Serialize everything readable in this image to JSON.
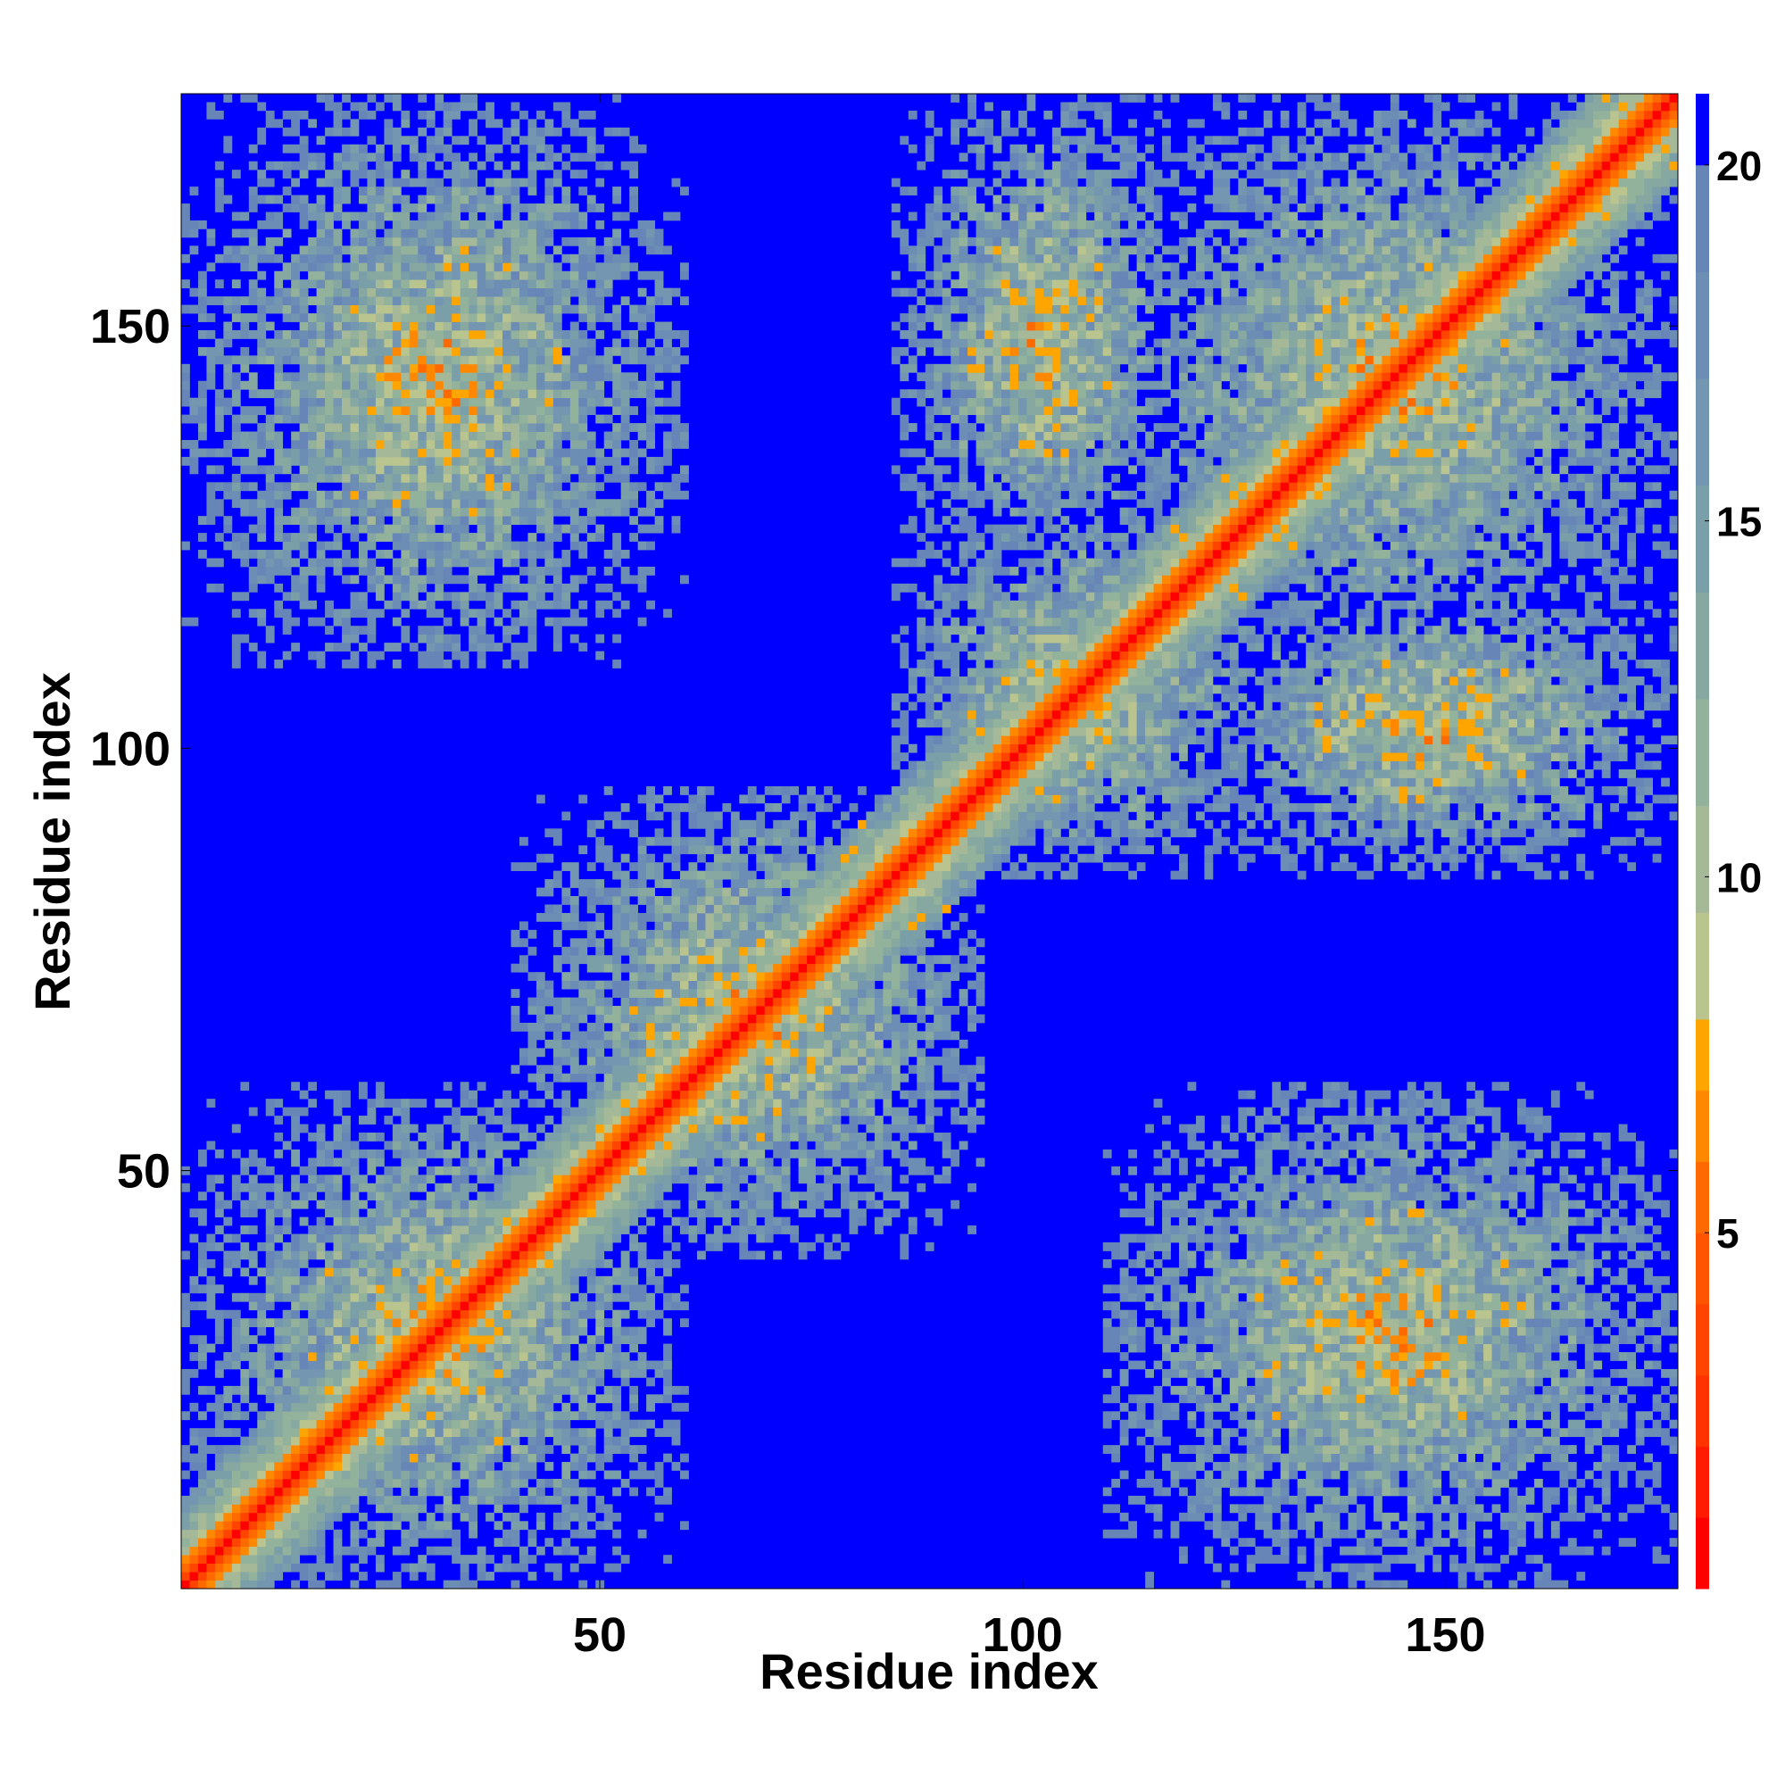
{
  "chart_data": {
    "type": "heatmap",
    "title": "",
    "xlabel": "Residue index",
    "ylabel": "Residue index",
    "x_range": [
      1,
      177
    ],
    "y_range": [
      1,
      177
    ],
    "x_ticks": [
      50,
      100,
      150
    ],
    "y_ticks": [
      50,
      100,
      150
    ],
    "colorbar": {
      "position": "right",
      "range": [
        0,
        21
      ],
      "ticks": [
        5,
        10,
        15,
        20
      ],
      "colors": [
        {
          "max": 1,
          "color": "#ff0000"
        },
        {
          "max": 2,
          "color": "#ff1a00"
        },
        {
          "max": 3,
          "color": "#ff3300"
        },
        {
          "max": 4,
          "color": "#ff4400"
        },
        {
          "max": 5,
          "color": "#ff5500"
        },
        {
          "max": 6,
          "color": "#ff6a00"
        },
        {
          "max": 7,
          "color": "#ff8800"
        },
        {
          "max": 8,
          "color": "#ffa500"
        },
        {
          "max": 9.5,
          "color": "#b9c48f"
        },
        {
          "max": 11,
          "color": "#a5b898"
        },
        {
          "max": 12.5,
          "color": "#93b29b"
        },
        {
          "max": 14,
          "color": "#86a8a1"
        },
        {
          "max": 15.5,
          "color": "#7b9fa9"
        },
        {
          "max": 17,
          "color": "#7596b0"
        },
        {
          "max": 18.5,
          "color": "#6c8db4"
        },
        {
          "max": 20,
          "color": "#6785b7"
        },
        {
          "max": 21,
          "color": "#0000ff"
        }
      ]
    },
    "cutoff_above": 20,
    "diagonal_band_width": 3,
    "contact_regions": [
      {
        "x": [
          1,
          60
        ],
        "y": [
          1,
          60
        ],
        "desc": "N-terminal domain block"
      },
      {
        "x": [
          40,
          95
        ],
        "y": [
          40,
          95
        ],
        "desc": "central block"
      },
      {
        "x": [
          85,
          130
        ],
        "y": [
          85,
          130
        ],
        "desc": "middle block"
      },
      {
        "x": [
          110,
          177
        ],
        "y": [
          110,
          177
        ],
        "desc": "C-terminal block"
      },
      {
        "x": [
          110,
          177
        ],
        "y": [
          1,
          60
        ],
        "desc": "N-C terminal contacts"
      },
      {
        "x": [
          1,
          60
        ],
        "y": [
          110,
          177
        ],
        "desc": "N-C terminal contacts (symmetric)"
      },
      {
        "x": [
          85,
          120
        ],
        "y": [
          120,
          177
        ],
        "desc": "off-diagonal"
      },
      {
        "x": [
          120,
          177
        ],
        "y": [
          85,
          120
        ],
        "desc": "off-diagonal (symmetric)"
      }
    ]
  }
}
